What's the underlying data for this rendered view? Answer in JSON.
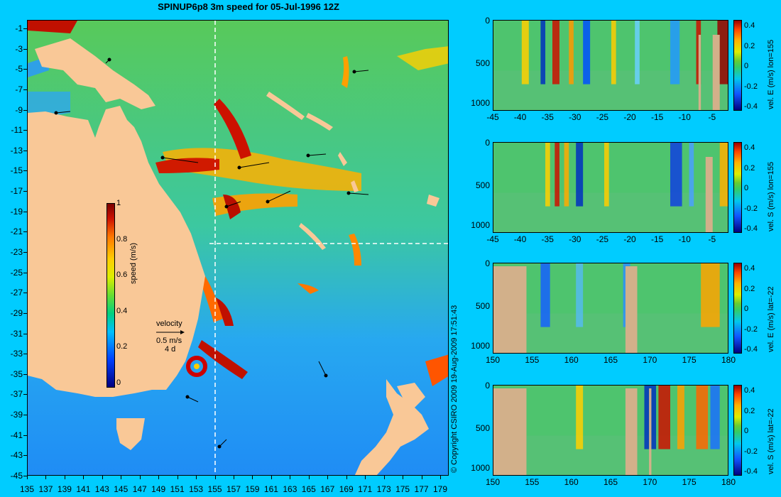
{
  "title": "SPINUP6p8 3m speed for 05-Jul-1996 12Z",
  "copyright": "© Copyright CSIRO 2009   19-Aug-2009 17:51:43",
  "map": {
    "lat_labels": [
      "-1",
      "-3",
      "-5",
      "-7",
      "-9",
      "-11",
      "-13",
      "-15",
      "-17",
      "-19",
      "-21",
      "-23",
      "-25",
      "-27",
      "-29",
      "-31",
      "-33",
      "-35",
      "-37",
      "-39",
      "-41",
      "-43",
      "-45"
    ],
    "lon_labels": [
      "135",
      "137",
      "139",
      "141",
      "143",
      "145",
      "147",
      "149",
      "151",
      "153",
      "155",
      "157",
      "159",
      "161",
      "163",
      "165",
      "167",
      "169",
      "171",
      "173",
      "175",
      "177",
      "179"
    ],
    "lat_range": [
      -45,
      0
    ],
    "lon_range": [
      135,
      180
    ],
    "section_lon": 155,
    "section_lat": -22,
    "colors": {
      "land": "#f9c897",
      "ocean_low": "#1a8cff",
      "ocean_mid": "#4ccc55",
      "ocean_high": "#cc1100",
      "background": "#00ccff"
    }
  },
  "colorbar": {
    "title": "speed (m/s)",
    "ticks": [
      "1",
      "0.8",
      "0.6",
      "0.4",
      "0.2",
      "0"
    ],
    "range": [
      0,
      1
    ]
  },
  "velocity_legend": {
    "label": "velocity",
    "scale": "0.5 m/s",
    "period": "4 d"
  },
  "panels": [
    {
      "title": "vel. E (m/s) lon=155",
      "x_ticks": [
        "-45",
        "-40",
        "-35",
        "-30",
        "-25",
        "-20",
        "-15",
        "-10",
        "-5"
      ],
      "y_ticks": [
        "0",
        "500",
        "1000"
      ],
      "cb_ticks": [
        "0.4",
        "0.2",
        "0",
        "-0.2",
        "-0.4"
      ]
    },
    {
      "title": "vel. S (m/s) lon=155",
      "x_ticks": [
        "-45",
        "-40",
        "-35",
        "-30",
        "-25",
        "-20",
        "-15",
        "-10",
        "-5"
      ],
      "y_ticks": [
        "0",
        "500",
        "1000"
      ],
      "cb_ticks": [
        "0.4",
        "0.2",
        "0",
        "-0.2",
        "-0.4"
      ]
    },
    {
      "title": "vel. E (m/s) lat=-22",
      "x_ticks": [
        "150",
        "155",
        "160",
        "165",
        "170",
        "175",
        "180"
      ],
      "y_ticks": [
        "0",
        "500",
        "1000"
      ],
      "cb_ticks": [
        "0.4",
        "0.2",
        "0",
        "-0.2",
        "-0.4"
      ]
    },
    {
      "title": "vel. S (m/s) lat=-22",
      "x_ticks": [
        "150",
        "155",
        "160",
        "165",
        "170",
        "175",
        "180"
      ],
      "y_ticks": [
        "0",
        "500",
        "1000"
      ],
      "cb_ticks": [
        "0.4",
        "0.2",
        "0",
        "-0.2",
        "-0.4"
      ]
    }
  ]
}
